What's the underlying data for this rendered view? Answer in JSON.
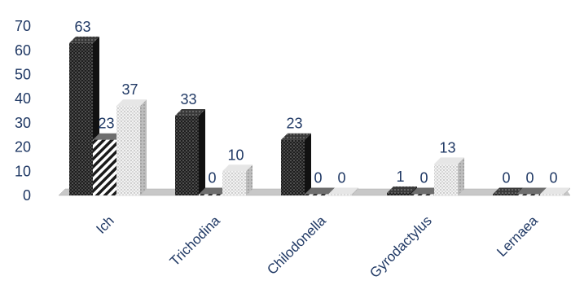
{
  "chart_data": {
    "type": "bar",
    "style": "3d-clustered-column",
    "title": "",
    "xlabel": "",
    "ylabel": "",
    "categories": [
      "Ich",
      "Trichodina",
      "Chilodonella",
      "Gyrodactylus",
      "Lernaea"
    ],
    "series": [
      {
        "values": [
          63,
          33,
          23,
          1,
          0
        ],
        "pattern": "dark-dotted"
      },
      {
        "values": [
          23,
          0,
          0,
          0,
          0
        ],
        "pattern": "diagonal-hatch"
      },
      {
        "values": [
          37,
          10,
          0,
          13,
          0
        ],
        "pattern": "light-dotted"
      }
    ],
    "data_labels": [
      [
        "63",
        "33",
        "23",
        "1",
        "0"
      ],
      [
        "23",
        "0",
        "0",
        "0",
        "0"
      ],
      [
        "37",
        "10",
        "0",
        "13",
        "0"
      ]
    ],
    "yticks": [
      "0",
      "10",
      "20",
      "30",
      "40",
      "50",
      "60",
      "70"
    ],
    "ylim": [
      0,
      70
    ],
    "grid": false,
    "legend": "none",
    "colors": {
      "axis_text": "#1f3864",
      "dark": "#2b2b2b",
      "light": "#d9d9d9",
      "floor": "#c8c8c8"
    }
  }
}
